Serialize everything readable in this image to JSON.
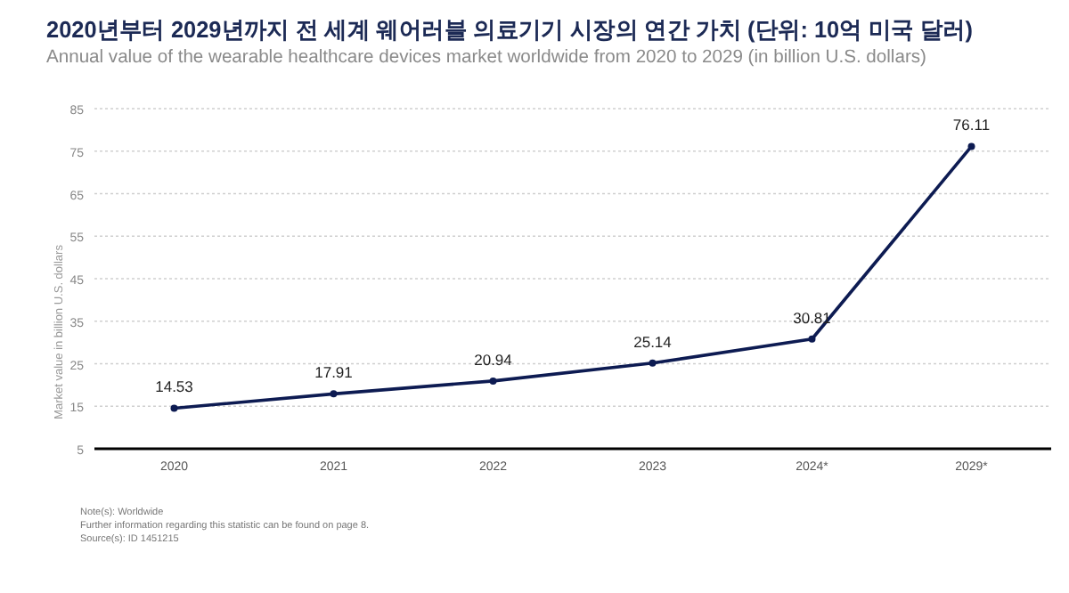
{
  "chart_data": {
    "type": "line",
    "title": "2020년부터 2029년까지 전 세계 웨어러블 의료기기 시장의 연간 가치 (단위: 10억 미국 달러)",
    "subtitle": "Annual value of the wearable healthcare devices market worldwide from 2020 to 2029 (in billion U.S. dollars)",
    "ylabel": "Market value in billion U.S. dollars",
    "categories": [
      "2020",
      "2021",
      "2022",
      "2023",
      "2024*",
      "2029*"
    ],
    "series": [
      {
        "color": "#0d1b52",
        "values": [
          14.53,
          17.91,
          20.94,
          25.14,
          30.81,
          76.11
        ]
      }
    ],
    "ylim": [
      5,
      85
    ],
    "yticks": [
      5,
      15,
      25,
      35,
      45,
      55,
      65,
      75,
      85
    ],
    "grid": "y",
    "marker": "circle",
    "line_style": "solid",
    "data_labels": true,
    "annotations": [
      "Note(s): Worldwide",
      "Further information regarding this statistic can be found on page 8.",
      "Source(s): ID 1451215"
    ]
  }
}
